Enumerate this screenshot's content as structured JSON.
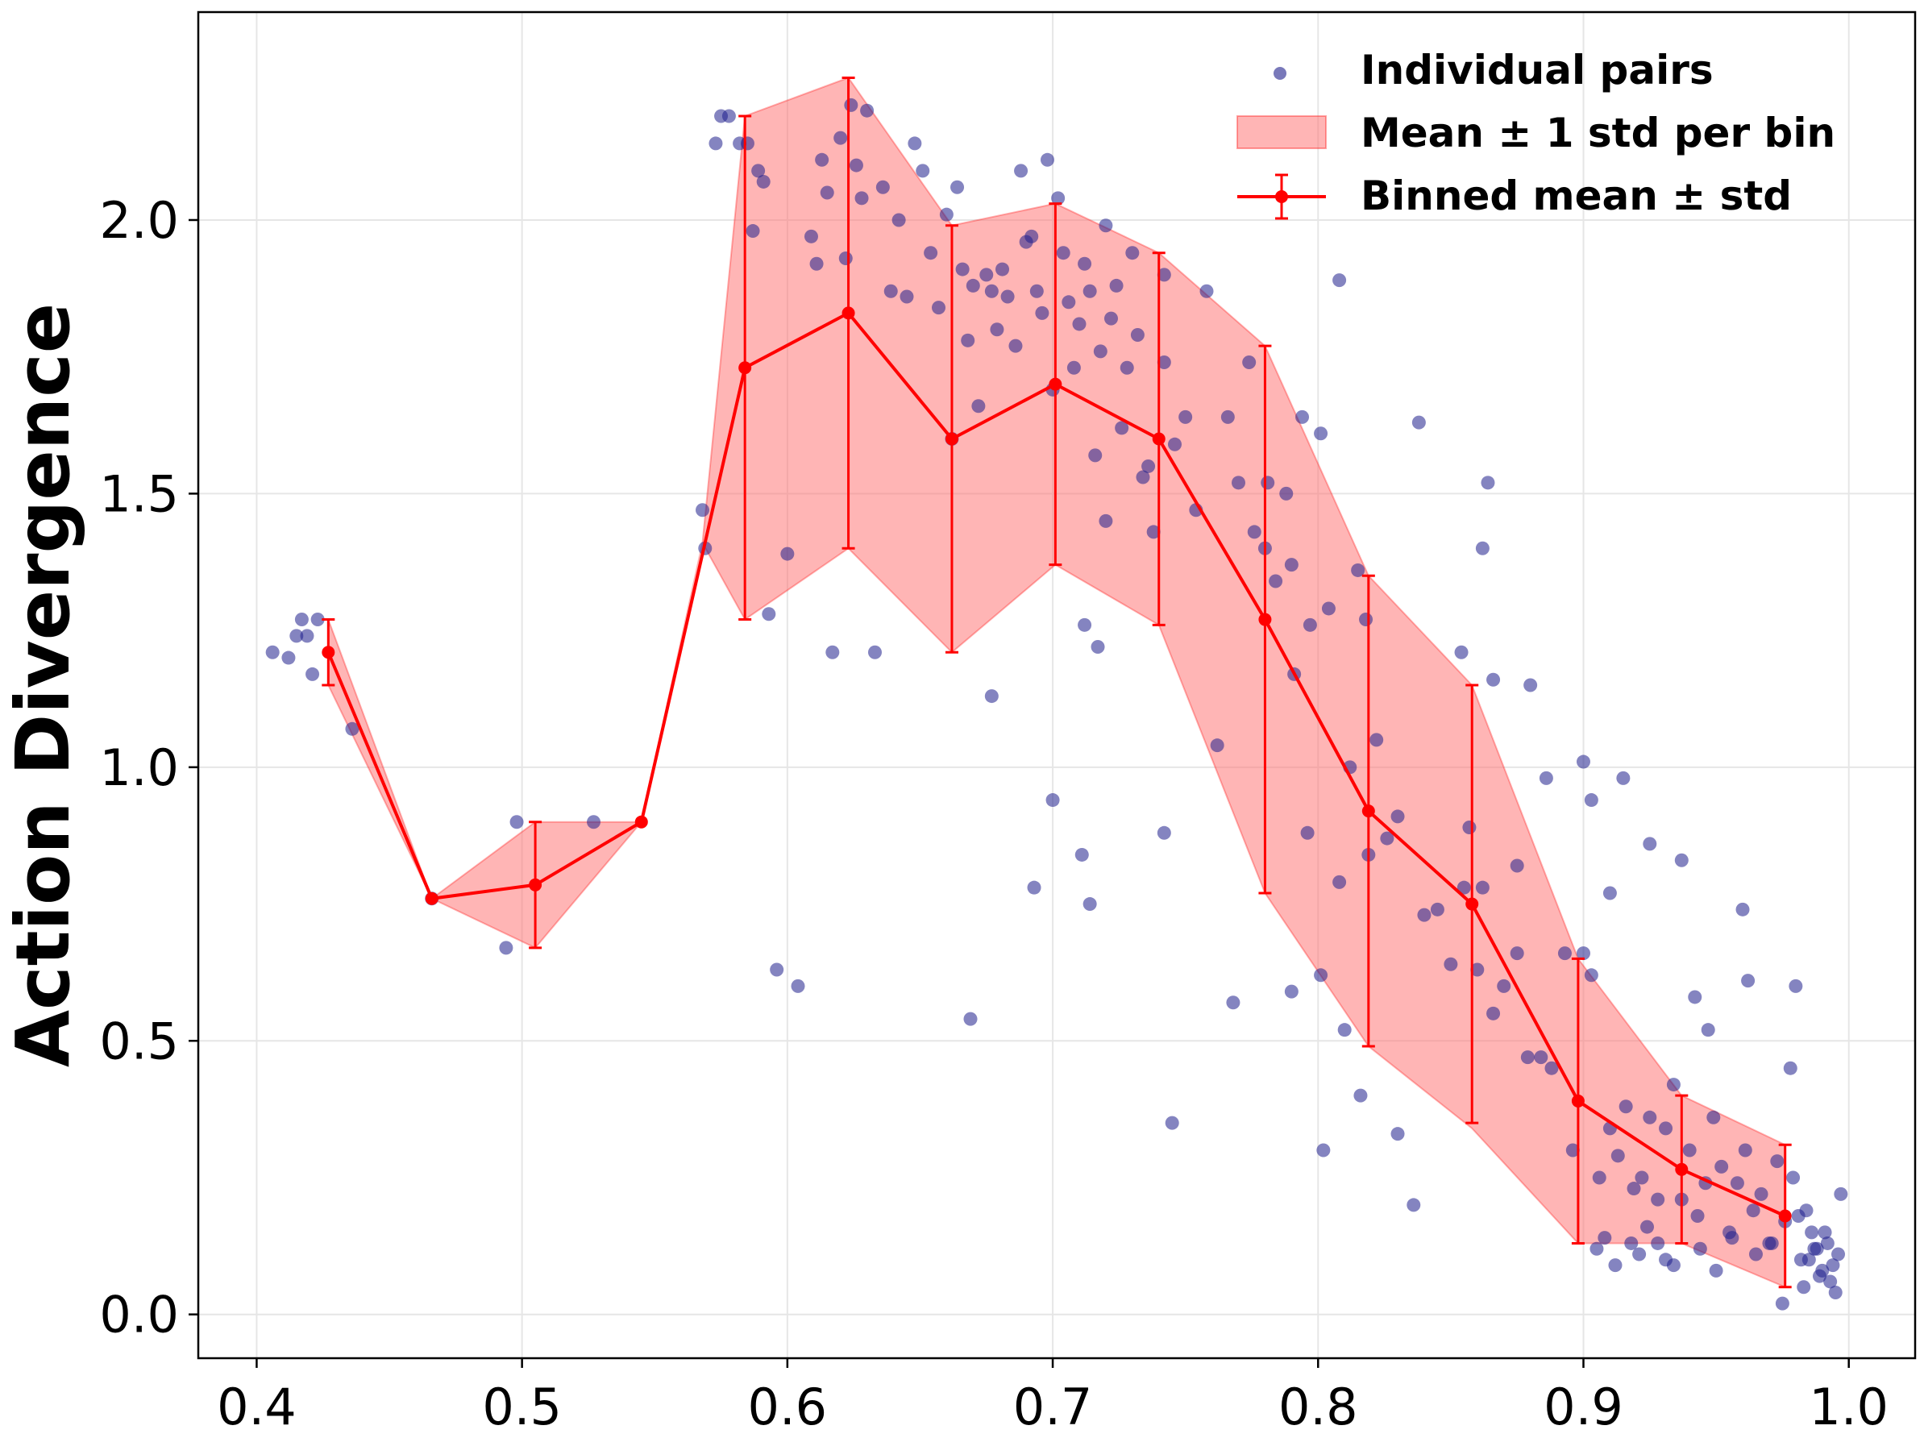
{
  "chart_data": {
    "type": "scatter",
    "title": "",
    "xlabel": "",
    "ylabel": "Action Divergence",
    "xlim": [
      0.378,
      1.025
    ],
    "ylim": [
      -0.08,
      2.38
    ],
    "xticks": [
      0.4,
      0.5,
      0.6,
      0.7,
      0.8,
      0.9,
      1.0
    ],
    "xtick_labels": [
      "0.4",
      "0.5",
      "0.6",
      "0.7",
      "0.8",
      "0.9",
      "1.0"
    ],
    "yticks": [
      0.0,
      0.5,
      1.0,
      1.5,
      2.0
    ],
    "ytick_labels": [
      "0.0",
      "0.5",
      "1.0",
      "1.5",
      "2.0"
    ],
    "grid": true,
    "legend_position": "top-right",
    "legend": [
      {
        "label": "Individual pairs",
        "kind": "scatter"
      },
      {
        "label": "Mean ± 1 std per bin",
        "kind": "band"
      },
      {
        "label": "Binned mean ± std",
        "kind": "errorbar"
      }
    ],
    "colors": {
      "scatter": "#1f1f8c",
      "band": "#ff6b6b",
      "line": "#ff0000"
    },
    "binned": {
      "x": [
        0.427,
        0.466,
        0.505,
        0.545,
        0.584,
        0.623,
        0.662,
        0.701,
        0.74,
        0.78,
        0.819,
        0.858,
        0.898,
        0.937,
        0.976
      ],
      "mean": [
        1.21,
        0.76,
        0.785,
        0.9,
        1.73,
        1.83,
        1.6,
        1.7,
        1.6,
        1.27,
        0.92,
        0.75,
        0.39,
        0.265,
        0.18
      ],
      "std": [
        0.06,
        0.0,
        0.115,
        0.0,
        0.46,
        0.43,
        0.39,
        0.33,
        0.34,
        0.5,
        0.43,
        0.4,
        0.26,
        0.135,
        0.13
      ]
    },
    "band_edges": {
      "x": [
        0.427,
        0.466,
        0.505,
        0.545,
        0.568,
        0.584,
        0.623,
        0.662,
        0.701,
        0.74,
        0.78,
        0.819,
        0.858,
        0.898,
        0.937,
        0.976
      ],
      "upper": [
        1.27,
        0.76,
        0.9,
        0.9,
        1.41,
        2.19,
        2.26,
        1.99,
        2.03,
        1.94,
        1.77,
        1.35,
        1.15,
        0.65,
        0.4,
        0.31
      ],
      "lower": [
        1.15,
        0.76,
        0.67,
        0.9,
        1.41,
        1.27,
        1.4,
        1.21,
        1.37,
        1.26,
        0.77,
        0.49,
        0.34,
        0.13,
        0.13,
        0.05
      ]
    },
    "individual_pairs": {
      "x": [
        0.406,
        0.412,
        0.415,
        0.417,
        0.419,
        0.421,
        0.423,
        0.436,
        0.466,
        0.494,
        0.498,
        0.527,
        0.568,
        0.569,
        0.573,
        0.575,
        0.578,
        0.582,
        0.585,
        0.587,
        0.589,
        0.591,
        0.593,
        0.596,
        0.6,
        0.604,
        0.609,
        0.611,
        0.613,
        0.615,
        0.617,
        0.62,
        0.622,
        0.624,
        0.626,
        0.628,
        0.63,
        0.633,
        0.636,
        0.639,
        0.642,
        0.645,
        0.648,
        0.651,
        0.654,
        0.657,
        0.66,
        0.662,
        0.664,
        0.666,
        0.668,
        0.67,
        0.672,
        0.675,
        0.677,
        0.679,
        0.681,
        0.683,
        0.686,
        0.688,
        0.69,
        0.692,
        0.694,
        0.696,
        0.698,
        0.7,
        0.702,
        0.704,
        0.706,
        0.708,
        0.71,
        0.712,
        0.714,
        0.716,
        0.718,
        0.72,
        0.722,
        0.724,
        0.726,
        0.728,
        0.73,
        0.732,
        0.734,
        0.736,
        0.738,
        0.7,
        0.711,
        0.714,
        0.693,
        0.669,
        0.677,
        0.712,
        0.717,
        0.72,
        0.742,
        0.745,
        0.742,
        0.742,
        0.746,
        0.75,
        0.754,
        0.758,
        0.762,
        0.766,
        0.77,
        0.774,
        0.776,
        0.78,
        0.784,
        0.788,
        0.79,
        0.794,
        0.797,
        0.801,
        0.804,
        0.808,
        0.812,
        0.815,
        0.818,
        0.822,
        0.826,
        0.83,
        0.768,
        0.781,
        0.79,
        0.802,
        0.81,
        0.816,
        0.83,
        0.836,
        0.838,
        0.801,
        0.791,
        0.796,
        0.808,
        0.819,
        0.854,
        0.857,
        0.862,
        0.864,
        0.862,
        0.866,
        0.875,
        0.88,
        0.886,
        0.84,
        0.845,
        0.85,
        0.855,
        0.86,
        0.866,
        0.87,
        0.875,
        0.879,
        0.884,
        0.888,
        0.893,
        0.896,
        0.9,
        0.903,
        0.906,
        0.91,
        0.913,
        0.916,
        0.919,
        0.922,
        0.925,
        0.928,
        0.931,
        0.934,
        0.937,
        0.9,
        0.903,
        0.91,
        0.915,
        0.925,
        0.937,
        0.942,
        0.947,
        0.96,
        0.962,
        0.978,
        0.98,
        0.94,
        0.943,
        0.946,
        0.949,
        0.952,
        0.955,
        0.958,
        0.961,
        0.964,
        0.967,
        0.97,
        0.973,
        0.976,
        0.979,
        0.982,
        0.984,
        0.986,
        0.988,
        0.99,
        0.992,
        0.994,
        0.996,
        0.905,
        0.908,
        0.912,
        0.918,
        0.921,
        0.924,
        0.928,
        0.931,
        0.934,
        0.944,
        0.95,
        0.956,
        0.965,
        0.971,
        0.975,
        0.983,
        0.987,
        0.989,
        0.991,
        0.993,
        0.995,
        0.981,
        0.985,
        0.997
      ],
      "y": [
        1.21,
        1.2,
        1.24,
        1.27,
        1.24,
        1.17,
        1.27,
        1.07,
        0.76,
        0.67,
        0.9,
        0.9,
        1.47,
        1.4,
        2.14,
        2.19,
        2.19,
        2.14,
        2.14,
        1.98,
        2.09,
        2.07,
        1.28,
        0.63,
        1.39,
        0.6,
        1.97,
        1.92,
        2.11,
        2.05,
        1.21,
        2.15,
        1.93,
        2.21,
        2.1,
        2.04,
        2.2,
        1.21,
        2.06,
        1.87,
        2.0,
        1.86,
        2.14,
        2.09,
        1.94,
        1.84,
        2.01,
        1.6,
        2.06,
        1.91,
        1.78,
        1.88,
        1.66,
        1.9,
        1.87,
        1.8,
        1.91,
        1.86,
        1.77,
        2.09,
        1.96,
        1.97,
        1.87,
        1.83,
        2.11,
        1.69,
        2.04,
        1.94,
        1.85,
        1.73,
        1.81,
        1.92,
        1.87,
        1.57,
        1.76,
        1.99,
        1.82,
        1.88,
        1.62,
        1.73,
        1.94,
        1.79,
        1.53,
        1.55,
        1.43,
        0.94,
        0.84,
        0.75,
        0.78,
        0.54,
        1.13,
        1.26,
        1.22,
        1.45,
        0.88,
        0.35,
        1.9,
        1.74,
        1.59,
        1.64,
        1.47,
        1.87,
        1.04,
        1.64,
        1.52,
        1.74,
        1.43,
        1.4,
        1.34,
        1.5,
        1.37,
        1.64,
        1.26,
        1.61,
        1.29,
        1.89,
        1.0,
        1.36,
        1.27,
        1.05,
        0.87,
        0.91,
        0.57,
        1.52,
        0.59,
        0.3,
        0.52,
        0.4,
        0.33,
        0.2,
        1.63,
        0.62,
        1.17,
        0.88,
        0.79,
        0.84,
        1.21,
        0.89,
        1.4,
        1.52,
        0.78,
        1.16,
        0.82,
        1.15,
        0.98,
        0.73,
        0.74,
        0.64,
        0.78,
        0.63,
        0.55,
        0.6,
        0.66,
        0.47,
        0.47,
        0.45,
        0.66,
        0.3,
        0.66,
        0.62,
        0.25,
        0.34,
        0.29,
        0.38,
        0.23,
        0.25,
        0.36,
        0.21,
        0.34,
        0.42,
        0.21,
        1.01,
        0.94,
        0.77,
        0.98,
        0.86,
        0.83,
        0.58,
        0.52,
        0.74,
        0.61,
        0.45,
        0.6,
        0.3,
        0.18,
        0.24,
        0.36,
        0.27,
        0.15,
        0.24,
        0.3,
        0.19,
        0.22,
        0.13,
        0.28,
        0.17,
        0.25,
        0.1,
        0.19,
        0.15,
        0.12,
        0.08,
        0.13,
        0.09,
        0.11,
        0.12,
        0.14,
        0.09,
        0.13,
        0.11,
        0.16,
        0.13,
        0.1,
        0.09,
        0.12,
        0.08,
        0.14,
        0.11,
        0.13,
        0.02,
        0.05,
        0.12,
        0.07,
        0.15,
        0.06,
        0.04,
        0.18,
        0.1,
        0.22
      ]
    }
  }
}
